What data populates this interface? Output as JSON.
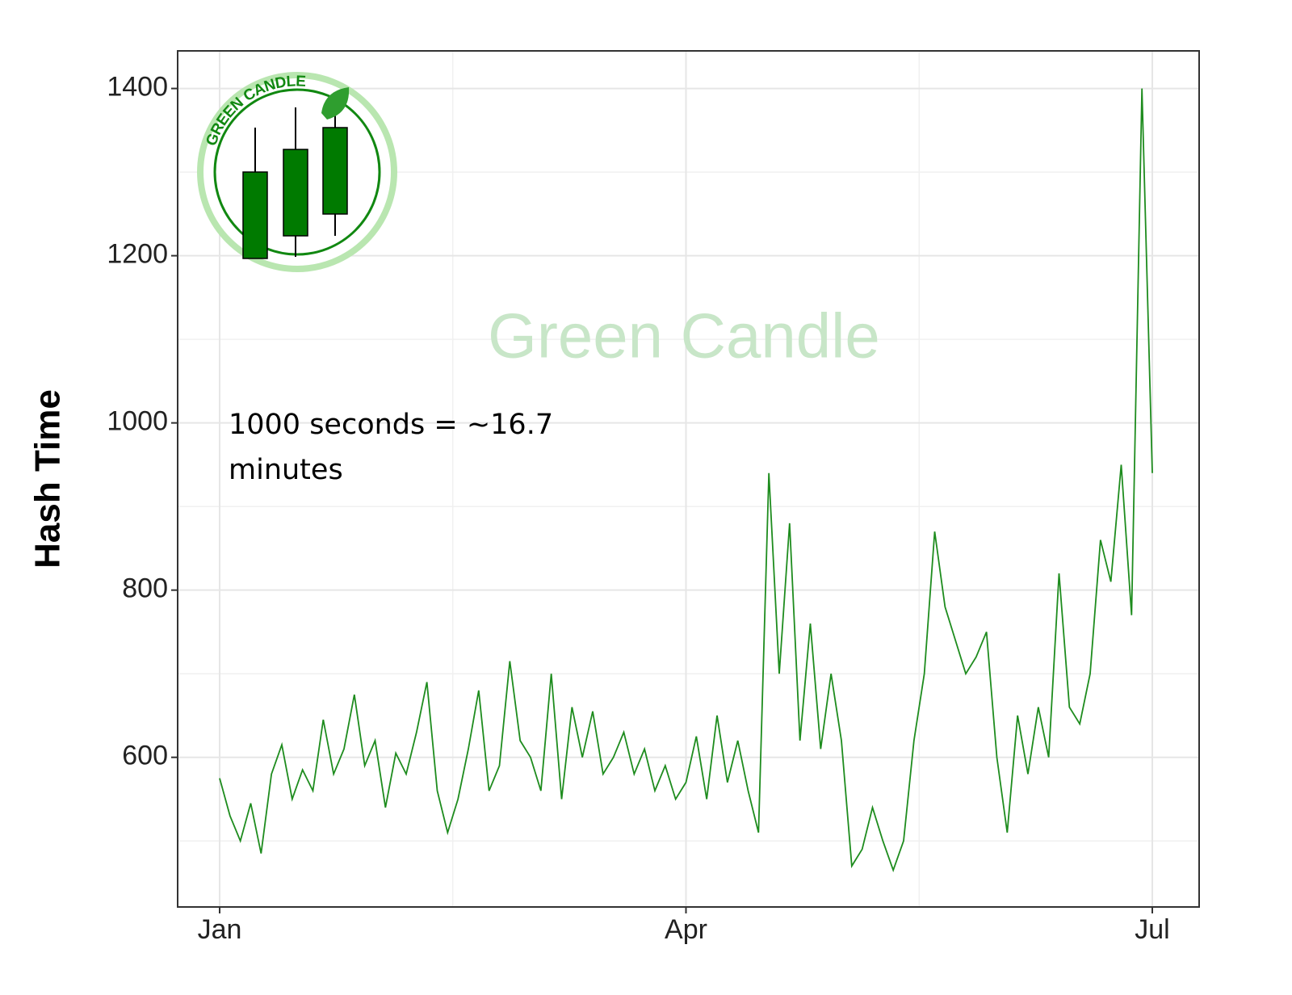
{
  "chart_data": {
    "type": "line",
    "y_label": "Hash Time",
    "annotation": "1000 seconds = ~16.7 minutes",
    "watermark": "Green Candle",
    "logo_text": "GREEN CANDLE",
    "categories": [
      "Jan",
      null,
      null,
      null,
      null,
      null,
      null,
      null,
      null,
      null,
      null,
      null,
      null,
      null,
      null,
      null,
      null,
      null,
      null,
      null,
      null,
      null,
      null,
      null,
      null,
      null,
      null,
      null,
      null,
      null,
      null,
      null,
      null,
      null,
      null,
      null,
      null,
      null,
      null,
      null,
      null,
      null,
      null,
      null,
      null,
      "Apr",
      null,
      null,
      null,
      null,
      null,
      null,
      null,
      null,
      null,
      null,
      null,
      null,
      null,
      null,
      null,
      null,
      null,
      null,
      null,
      null,
      null,
      null,
      null,
      null,
      null,
      null,
      null,
      null,
      null,
      null,
      null,
      null,
      null,
      null,
      null,
      null,
      null,
      null,
      null,
      null,
      null,
      null,
      null,
      null,
      "Jul"
    ],
    "series": [
      {
        "name": "Hash Time",
        "color": "#1e8c1e",
        "values": [
          575,
          530,
          500,
          545,
          485,
          580,
          615,
          550,
          585,
          560,
          645,
          580,
          610,
          675,
          590,
          620,
          540,
          605,
          580,
          630,
          690,
          560,
          510,
          550,
          610,
          680,
          560,
          590,
          715,
          620,
          600,
          560,
          700,
          550,
          660,
          600,
          655,
          580,
          600,
          630,
          580,
          610,
          560,
          590,
          550,
          570,
          625,
          550,
          650,
          570,
          620,
          560,
          510,
          940,
          700,
          880,
          620,
          760,
          610,
          700,
          620,
          470,
          490,
          540,
          500,
          465,
          500,
          620,
          700,
          870,
          780,
          740,
          700,
          720,
          750,
          600,
          510,
          650,
          580,
          660,
          600,
          820,
          660,
          640,
          700,
          860,
          810,
          950,
          770,
          1400,
          940
        ]
      }
    ],
    "ylim": [
      421,
      1445
    ],
    "yticks": [
      600,
      800,
      1000,
      1200,
      1400
    ],
    "grid": true
  }
}
